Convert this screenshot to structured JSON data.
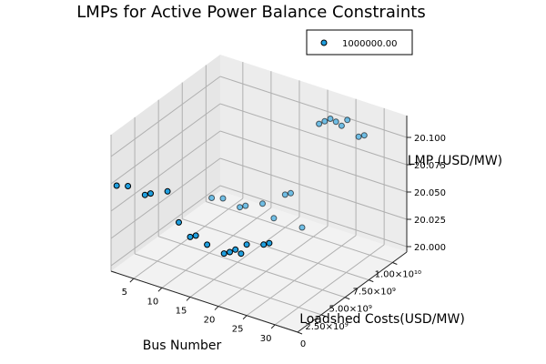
{
  "chart_data": {
    "type": "scatter",
    "projection": "3d",
    "title": "LMPs for Active Power Balance Constraints",
    "xlabel": "Bus Number",
    "ylabel": "Loadshed Costs(USD/MW)",
    "zlabel": "LMP (USD/MW)",
    "x_ticks": [
      "5",
      "10",
      "15",
      "20",
      "25",
      "30"
    ],
    "x_tick_values": [
      5,
      10,
      15,
      20,
      25,
      30
    ],
    "y_ticks": [
      "0",
      "2.50×10⁹",
      "5.00×10⁹",
      "7.50×10⁹",
      "1.00×10¹⁰"
    ],
    "y_tick_values": [
      0,
      2500000000,
      5000000000,
      7500000000,
      10000000000
    ],
    "z_ticks": [
      "20.000",
      "20.025",
      "20.050",
      "20.075",
      "20.100"
    ],
    "z_tick_values": [
      20.0,
      20.025,
      20.05,
      20.075,
      20.1
    ],
    "xlim": [
      1,
      34
    ],
    "ylim": [
      0,
      11500000000
    ],
    "zlim": [
      19.995,
      20.12
    ],
    "grid": true,
    "legend_position": "top-right",
    "series": [
      {
        "name": "1000000.00",
        "color": "#1f9fdf",
        "edge_color": "#000000",
        "marker": "circle",
        "points": [
          {
            "x": 2,
            "y": 0,
            "z": 20.075
          },
          {
            "x": 4,
            "y": 0,
            "z": 20.078
          },
          {
            "x": 7,
            "y": 0,
            "z": 20.075
          },
          {
            "x": 8,
            "y": 0,
            "z": 20.078
          },
          {
            "x": 11,
            "y": 0,
            "z": 20.085
          },
          {
            "x": 13,
            "y": 0,
            "z": 20.06
          },
          {
            "x": 15,
            "y": 0,
            "z": 20.05
          },
          {
            "x": 16,
            "y": 0,
            "z": 20.053
          },
          {
            "x": 18,
            "y": 0,
            "z": 20.048
          },
          {
            "x": 21,
            "y": 0,
            "z": 20.045
          },
          {
            "x": 22,
            "y": 0,
            "z": 20.048
          },
          {
            "x": 23,
            "y": 0,
            "z": 20.052
          },
          {
            "x": 24,
            "y": 0,
            "z": 20.05
          },
          {
            "x": 25,
            "y": 0,
            "z": 20.06
          },
          {
            "x": 28,
            "y": 0,
            "z": 20.065
          },
          {
            "x": 29,
            "y": 0,
            "z": 20.068
          },
          {
            "x": 2,
            "y": 10000000000,
            "z": 20.0
          },
          {
            "x": 4,
            "y": 10000000000,
            "z": 20.003
          },
          {
            "x": 7,
            "y": 10000000000,
            "z": 20.0
          },
          {
            "x": 8,
            "y": 10000000000,
            "z": 20.003
          },
          {
            "x": 11,
            "y": 10000000000,
            "z": 20.01
          },
          {
            "x": 13,
            "y": 10000000000,
            "z": 20.0
          },
          {
            "x": 15,
            "y": 10000000000,
            "z": 20.025
          },
          {
            "x": 16,
            "y": 10000000000,
            "z": 20.028
          },
          {
            "x": 18,
            "y": 10000000000,
            "z": 20.0
          },
          {
            "x": 21,
            "y": 10000000000,
            "z": 20.1
          },
          {
            "x": 22,
            "y": 10000000000,
            "z": 20.104
          },
          {
            "x": 23,
            "y": 10000000000,
            "z": 20.108
          },
          {
            "x": 24,
            "y": 10000000000,
            "z": 20.107
          },
          {
            "x": 25,
            "y": 10000000000,
            "z": 20.105
          },
          {
            "x": 26,
            "y": 10000000000,
            "z": 20.112
          },
          {
            "x": 28,
            "y": 10000000000,
            "z": 20.1
          },
          {
            "x": 29,
            "y": 10000000000,
            "z": 20.103
          }
        ]
      }
    ]
  }
}
